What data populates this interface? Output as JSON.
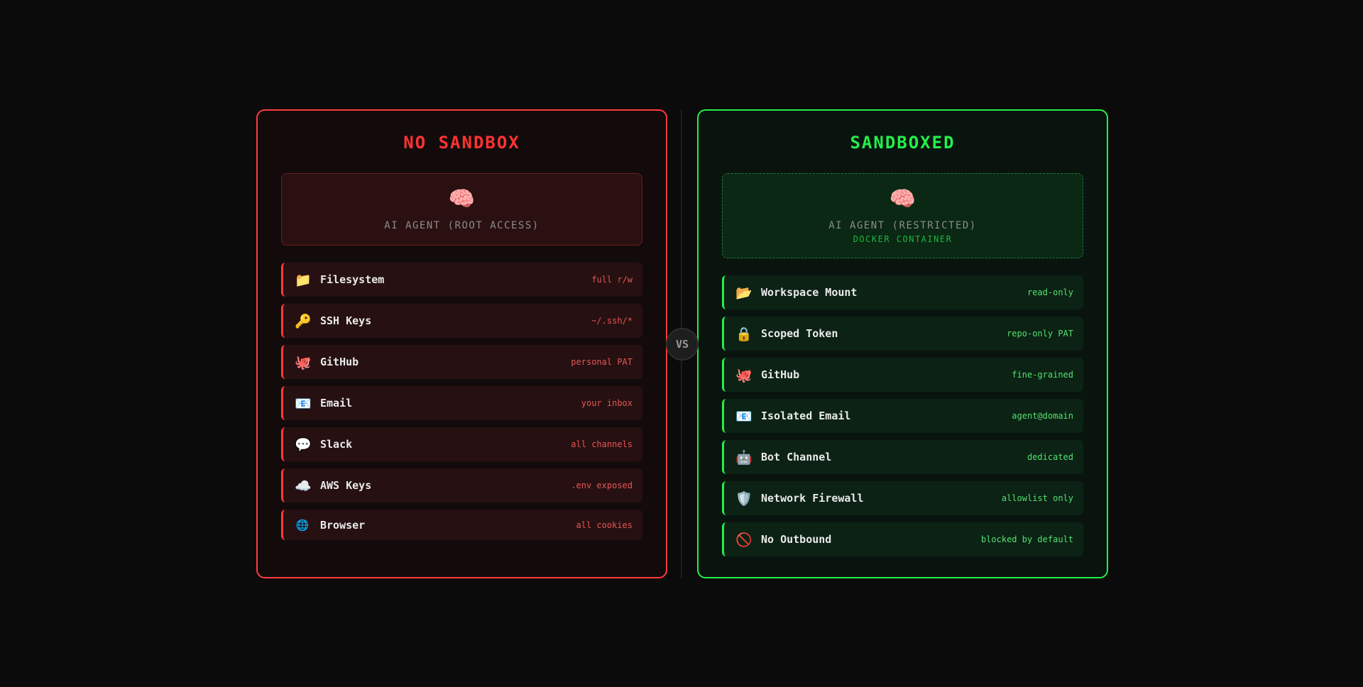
{
  "colors": {
    "danger": "#ff3b3b",
    "safe": "#22f04a"
  },
  "vs_label": "VS",
  "left": {
    "title": "NO SANDBOX",
    "agent_icon": "brain-icon",
    "agent_label": "AI AGENT (ROOT ACCESS)",
    "items": [
      {
        "icon": "📁",
        "icon_name": "folder-icon",
        "label": "Filesystem",
        "value": "full r/w"
      },
      {
        "icon": "🔑",
        "icon_name": "key-icon",
        "label": "SSH Keys",
        "value": "~/.ssh/*"
      },
      {
        "icon": "🐙",
        "icon_name": "octopus-icon",
        "label": "GitHub",
        "value": "personal PAT"
      },
      {
        "icon": "📧",
        "icon_name": "email-icon",
        "label": "Email",
        "value": "your inbox"
      },
      {
        "icon": "💬",
        "icon_name": "speech-bubble-icon",
        "label": "Slack",
        "value": "all channels"
      },
      {
        "icon": "☁️",
        "icon_name": "cloud-icon",
        "label": "AWS Keys",
        "value": ".env exposed"
      },
      {
        "icon": "🌐",
        "icon_name": "globe-icon",
        "label": "Browser",
        "value": "all cookies"
      }
    ]
  },
  "right": {
    "title": "SANDBOXED",
    "agent_icon": "brain-icon",
    "agent_label": "AI AGENT (RESTRICTED)",
    "agent_sub": "DOCKER CONTAINER",
    "items": [
      {
        "icon": "📂",
        "icon_name": "open-folder-icon",
        "label": "Workspace Mount",
        "value": "read-only"
      },
      {
        "icon": "🔒",
        "icon_name": "lock-icon",
        "label": "Scoped Token",
        "value": "repo-only PAT"
      },
      {
        "icon": "🐙",
        "icon_name": "octopus-icon",
        "label": "GitHub",
        "value": "fine-grained"
      },
      {
        "icon": "📧",
        "icon_name": "email-icon",
        "label": "Isolated Email",
        "value": "agent@domain"
      },
      {
        "icon": "🤖",
        "icon_name": "robot-icon",
        "label": "Bot Channel",
        "value": "dedicated"
      },
      {
        "icon": "🛡️",
        "icon_name": "shield-icon",
        "label": "Network Firewall",
        "value": "allowlist only"
      },
      {
        "icon": "🚫",
        "icon_name": "prohibited-icon",
        "label": "No Outbound",
        "value": "blocked by default"
      }
    ]
  }
}
